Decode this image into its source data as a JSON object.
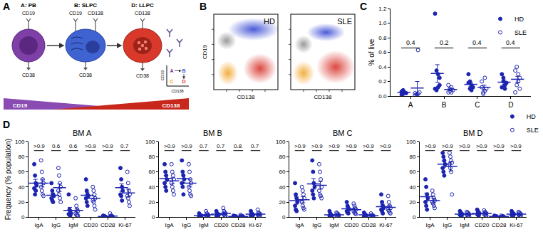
{
  "panel_labels": [
    "A",
    "B",
    "C",
    "D"
  ],
  "diagram": {
    "cells": [
      {
        "label": "A: PB",
        "markers_top": [
          "CD19"
        ],
        "marker_bottom": "CD38"
      },
      {
        "label": "B: SLPC",
        "markers_top": [
          "CD19",
          "CD138"
        ],
        "marker_bottom": "CD38"
      },
      {
        "label": "D: LLPC",
        "markers_top": [
          "CD138"
        ],
        "marker_bottom": "CD38"
      }
    ],
    "gradient": [
      "CD19",
      "CD138"
    ],
    "gate_key": {
      "gates": [
        "A",
        "B",
        "C",
        "D"
      ],
      "x_label": "CD138",
      "y_label": "CD19"
    }
  },
  "flow_plots": {
    "panels": [
      "HD",
      "SLE"
    ],
    "x_label": "CD138",
    "y_label": "CD19"
  },
  "chart_data": [
    {
      "type": "scatter",
      "ylabel": "% of live",
      "categories": [
        "A",
        "B",
        "C",
        "D"
      ],
      "ylim": [
        0,
        1.2
      ],
      "yticks": [
        {
          "value": 0,
          "label": "0.0"
        },
        0.2,
        0.4,
        0.6,
        0.8,
        {
          "value": 1,
          "label": "1.0"
        },
        1.2
      ],
      "legend": "upper right",
      "p_values": [
        "0.4",
        "0.2",
        "0.4",
        "0.4"
      ],
      "series": [
        {
          "name": "HD",
          "color": "#1c24b0",
          "marker": "filled",
          "values": [
            [
              0.02,
              0.03,
              0.05,
              0.04,
              0.06,
              0.08
            ],
            [
              1.13,
              0.35,
              0.3,
              0.15,
              0.1,
              0.08,
              0.12,
              0.25
            ],
            [
              0.3,
              0.1,
              0.15,
              0.12,
              0.18,
              0.2,
              0.08
            ],
            [
              0.3,
              0.2,
              0.15,
              0.18,
              0.12,
              0.25,
              0.1
            ]
          ],
          "means": [
            0.05,
            0.31,
            0.16,
            0.19
          ],
          "errors": [
            0.01,
            0.12,
            0.03,
            0.03
          ]
        },
        {
          "name": "SLE",
          "color": "#1c24b0",
          "marker": "open",
          "values": [
            [
              0.01,
              0.02,
              0.03,
              0.05,
              0.04,
              0.02,
              0.63
            ],
            [
              0.15,
              0.1,
              0.05,
              0.08,
              0.05,
              0.07,
              0.12
            ],
            [
              0.2,
              0.05,
              0.07,
              0.1,
              0.12,
              0.03,
              0.25
            ],
            [
              0.35,
              0.4,
              0.2,
              0.1,
              0.05,
              0.15,
              0.3,
              0.25
            ]
          ],
          "means": [
            0.11,
            0.09,
            0.12,
            0.23
          ],
          "errors": [
            0.09,
            0.014,
            0.03,
            0.04
          ]
        }
      ]
    },
    {
      "type": "scatter",
      "title": "BM A",
      "ylabel": "Frequency (% population)",
      "categories": [
        "IgA",
        "IgG",
        "IgM",
        "CD20",
        "CD28",
        "Ki-67"
      ],
      "ylim": [
        0,
        100
      ],
      "yticks": [
        0,
        20,
        40,
        60,
        80,
        100
      ],
      "p_values": [
        ">0.9",
        "0.6",
        "0.6",
        ">0.9",
        ">0.9",
        "0.7"
      ],
      "series": [
        {
          "name": "HD",
          "color": "#1c24b0",
          "marker": "filled",
          "values": [
            [
              70,
              55,
              45,
              42,
              38,
              30,
              35
            ],
            [
              45,
              35,
              30,
              28,
              25,
              22,
              20
            ],
            [
              30,
              10,
              8,
              5,
              4,
              3,
              2
            ],
            [
              50,
              35,
              30,
              28,
              25,
              20,
              15
            ],
            [
              2,
              1,
              1,
              0.5,
              1,
              0.5,
              1
            ],
            [
              65,
              50,
              40,
              35,
              30,
              28,
              22
            ]
          ],
          "means": [
            45,
            29,
            9,
            29,
            1,
            39
          ],
          "errors": [
            5,
            3,
            4,
            4,
            0.2,
            5
          ]
        },
        {
          "name": "SLE",
          "color": "#1c24b0",
          "marker": "open",
          "values": [
            [
              75,
              60,
              50,
              45,
              40,
              35,
              30,
              28
            ],
            [
              65,
              55,
              45,
              40,
              35,
              30,
              25,
              20
            ],
            [
              25,
              15,
              10,
              8,
              5,
              3,
              2,
              2
            ],
            [
              40,
              35,
              30,
              25,
              22,
              20,
              15,
              10
            ],
            [
              5,
              2,
              1,
              1,
              0.5,
              1,
              0.5,
              1
            ],
            [
              60,
              45,
              35,
              30,
              28,
              25,
              20,
              15
            ]
          ],
          "means": [
            45,
            39,
            9,
            25,
            1.5,
            32
          ],
          "errors": [
            5,
            5,
            3,
            3,
            0.5,
            5
          ]
        }
      ]
    },
    {
      "type": "scatter",
      "title": "BM B",
      "categories": [
        "IgA",
        "IgG",
        "IgM",
        "CD20",
        "CD28",
        "Ki-67"
      ],
      "ylim": [
        0,
        100
      ],
      "yticks": [
        0,
        20,
        40,
        60,
        80,
        100
      ],
      "p_values": [
        ">0.9",
        ">0.9",
        "0.7",
        "0.7",
        "0.8",
        "0.7"
      ],
      "series": [
        {
          "name": "HD",
          "color": "#1c24b0",
          "marker": "filled",
          "values": [
            [
              70,
              60,
              55,
              50,
              45,
              40,
              35
            ],
            [
              75,
              60,
              55,
              50,
              45,
              40,
              30
            ],
            [
              5,
              3,
              2,
              2,
              1,
              1,
              1
            ],
            [
              8,
              5,
              4,
              3,
              2,
              2,
              1
            ],
            [
              2,
              1,
              1,
              1,
              0.5,
              0.5,
              1
            ],
            [
              8,
              5,
              4,
              3,
              2,
              2,
              1
            ]
          ],
          "means": [
            51,
            51,
            2,
            4,
            1,
            4
          ],
          "errors": [
            4,
            5,
            0.6,
            1,
            0.2,
            1
          ]
        },
        {
          "name": "SLE",
          "color": "#1c24b0",
          "marker": "open",
          "values": [
            [
              70,
              60,
              55,
              50,
              45,
              40,
              35,
              30
            ],
            [
              70,
              60,
              50,
              45,
              40,
              35,
              30,
              28
            ],
            [
              8,
              5,
              3,
              3,
              2,
              2,
              1,
              1
            ],
            [
              12,
              8,
              6,
              5,
              4,
              3,
              2,
              2
            ],
            [
              3,
              2,
              1,
              1,
              1,
              0.5,
              0.5,
              1
            ],
            [
              10,
              6,
              5,
              4,
              3,
              2,
              2,
              1
            ]
          ],
          "means": [
            48,
            45,
            3,
            5,
            1,
            4
          ],
          "errors": [
            4,
            5,
            0.8,
            1,
            0.3,
            1
          ]
        }
      ]
    },
    {
      "type": "scatter",
      "title": "BM C",
      "categories": [
        "IgA",
        "IgG",
        "IgM",
        "CD20",
        "CD28",
        "Ki-67"
      ],
      "ylim": [
        0,
        100
      ],
      "yticks": [
        0,
        20,
        40,
        60,
        80,
        100
      ],
      "p_values": [
        ">0.9",
        ">0.9",
        ">0.9",
        ">0.9",
        ">0.9",
        ">0.9"
      ],
      "series": [
        {
          "name": "HD",
          "color": "#1c24b0",
          "marker": "filled",
          "values": [
            [
              45,
              30,
              25,
              20,
              15,
              10,
              8
            ],
            [
              75,
              60,
              45,
              40,
              35,
              30,
              25
            ],
            [
              8,
              5,
              3,
              2,
              2,
              1,
              1
            ],
            [
              20,
              15,
              12,
              10,
              8,
              6,
              5
            ],
            [
              6,
              4,
              3,
              2,
              1,
              1,
              1
            ],
            [
              30,
              20,
              15,
              12,
              10,
              8,
              5
            ]
          ],
          "means": [
            22,
            44,
            3,
            11,
            3,
            14
          ],
          "errors": [
            5,
            7,
            1,
            2,
            0.7,
            3
          ]
        },
        {
          "name": "SLE",
          "color": "#1c24b0",
          "marker": "open",
          "values": [
            [
              40,
              35,
              30,
              25,
              20,
              15,
              12,
              10
            ],
            [
              70,
              60,
              50,
              40,
              35,
              30,
              28,
              25
            ],
            [
              6,
              5,
              4,
              3,
              2,
              2,
              1,
              1
            ],
            [
              18,
              15,
              12,
              10,
              8,
              6,
              5,
              4
            ],
            [
              5,
              3,
              2,
              2,
              1,
              1,
              1,
              1
            ],
            [
              28,
              20,
              15,
              12,
              10,
              8,
              6,
              5
            ]
          ],
          "means": [
            23,
            42,
            3,
            10,
            2,
            13
          ],
          "errors": [
            4,
            5,
            0.7,
            2,
            0.5,
            3
          ]
        }
      ]
    },
    {
      "type": "scatter",
      "title": "BM D",
      "categories": [
        "IgA",
        "IgG",
        "IgM",
        "CD20",
        "CD28",
        "Ki-67"
      ],
      "ylim": [
        0,
        100
      ],
      "yticks": [
        0,
        20,
        40,
        60,
        80,
        100
      ],
      "legend": "upper right",
      "p_values": [
        ">0.9",
        ">0.9",
        ">0.9",
        ">0.9",
        ">0.9",
        ">0.9"
      ],
      "series": [
        {
          "name": "HD",
          "color": "#1c24b0",
          "marker": "filled",
          "values": [
            [
              50,
              40,
              30,
              25,
              20,
              15,
              10
            ],
            [
              85,
              80,
              75,
              70,
              65,
              60,
              55
            ],
            [
              8,
              6,
              5,
              4,
              3,
              2,
              1
            ],
            [
              10,
              8,
              6,
              5,
              4,
              3,
              2
            ],
            [
              2,
              1,
              1,
              1,
              0.5,
              0.5,
              0.5
            ],
            [
              8,
              6,
              5,
              4,
              3,
              2,
              2
            ]
          ],
          "means": [
            27,
            70,
            4,
            5,
            1,
            4
          ],
          "errors": [
            5,
            4,
            1,
            1,
            0.2,
            1
          ]
        },
        {
          "name": "SLE",
          "color": "#1c24b0",
          "marker": "open",
          "values": [
            [
              35,
              30,
              25,
              22,
              20,
              18,
              15,
              12
            ],
            [
              85,
              80,
              75,
              72,
              70,
              65,
              60,
              30
            ],
            [
              7,
              6,
              5,
              4,
              3,
              2,
              2,
              1
            ],
            [
              9,
              7,
              6,
              5,
              4,
              3,
              2,
              2
            ],
            [
              2,
              1,
              1,
              1,
              0.5,
              0.5,
              0.5,
              0.5
            ],
            [
              7,
              6,
              5,
              4,
              3,
              3,
              2,
              1
            ]
          ],
          "means": [
            22,
            67,
            4,
            5,
            1,
            4
          ],
          "errors": [
            3,
            6,
            0.7,
            1,
            0.2,
            0.7
          ]
        }
      ]
    }
  ]
}
